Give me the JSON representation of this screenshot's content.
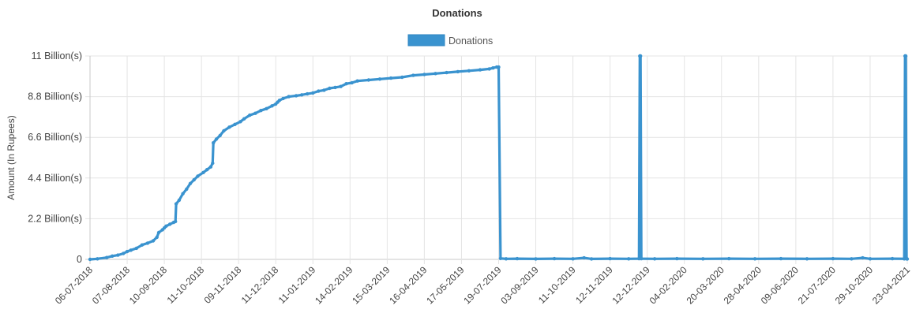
{
  "chart_data": {
    "type": "line",
    "title": "Donations",
    "ylabel": "Amount (In Rupees)",
    "xlabel": "",
    "legend": {
      "position": "top-center",
      "entries": [
        "Donations"
      ]
    },
    "grid": true,
    "color": "#3a93cf",
    "ylim": [
      0,
      11000000000
    ],
    "y_ticks": [
      {
        "value": 0,
        "label": "0"
      },
      {
        "value": 2200000000,
        "label": "2.2 Billion(s)"
      },
      {
        "value": 4400000000,
        "label": "4.4 Billion(s)"
      },
      {
        "value": 6600000000,
        "label": "6.6 Billion(s)"
      },
      {
        "value": 8800000000,
        "label": "8.8 Billion(s)"
      },
      {
        "value": 11000000000,
        "label": "11 Billion(s)"
      }
    ],
    "x_ticks": [
      "06-07-2018",
      "07-08-2018",
      "10-09-2018",
      "11-10-2018",
      "09-11-2018",
      "11-12-2018",
      "11-01-2019",
      "14-02-2019",
      "15-03-2019",
      "16-04-2019",
      "17-05-2019",
      "19-07-2019",
      "03-09-2019",
      "11-10-2019",
      "12-11-2019",
      "12-12-2019",
      "04-02-2020",
      "20-03-2020",
      "28-04-2020",
      "09-06-2020",
      "21-07-2020",
      "29-10-2020",
      "23-04-2021"
    ],
    "series": [
      {
        "name": "Donations",
        "points": [
          [
            0,
            0
          ],
          [
            0.2,
            30000000
          ],
          [
            0.45,
            100000000
          ],
          [
            0.6,
            180000000
          ],
          [
            0.75,
            230000000
          ],
          [
            0.9,
            320000000
          ],
          [
            1.0,
            420000000
          ],
          [
            1.1,
            500000000
          ],
          [
            1.25,
            600000000
          ],
          [
            1.4,
            780000000
          ],
          [
            1.55,
            880000000
          ],
          [
            1.7,
            1000000000
          ],
          [
            1.8,
            1200000000
          ],
          [
            1.85,
            1450000000
          ],
          [
            1.95,
            1600000000
          ],
          [
            2.0,
            1700000000
          ],
          [
            2.05,
            1800000000
          ],
          [
            2.15,
            1900000000
          ],
          [
            2.25,
            2000000000
          ],
          [
            2.3,
            2050000000
          ],
          [
            2.32,
            3000000000
          ],
          [
            2.4,
            3200000000
          ],
          [
            2.5,
            3550000000
          ],
          [
            2.6,
            3800000000
          ],
          [
            2.7,
            4100000000
          ],
          [
            2.8,
            4300000000
          ],
          [
            2.9,
            4500000000
          ],
          [
            3.05,
            4700000000
          ],
          [
            3.15,
            4850000000
          ],
          [
            3.25,
            5000000000
          ],
          [
            3.3,
            5200000000
          ],
          [
            3.32,
            6300000000
          ],
          [
            3.4,
            6500000000
          ],
          [
            3.5,
            6700000000
          ],
          [
            3.6,
            6950000000
          ],
          [
            3.75,
            7150000000
          ],
          [
            3.9,
            7300000000
          ],
          [
            4.05,
            7450000000
          ],
          [
            4.15,
            7600000000
          ],
          [
            4.3,
            7800000000
          ],
          [
            4.45,
            7900000000
          ],
          [
            4.6,
            8050000000
          ],
          [
            4.75,
            8150000000
          ],
          [
            4.9,
            8300000000
          ],
          [
            5.0,
            8400000000
          ],
          [
            5.05,
            8500000000
          ],
          [
            5.1,
            8600000000
          ],
          [
            5.2,
            8700000000
          ],
          [
            5.35,
            8800000000
          ],
          [
            5.55,
            8850000000
          ],
          [
            5.7,
            8900000000
          ],
          [
            5.85,
            8950000000
          ],
          [
            6.0,
            9000000000
          ],
          [
            6.15,
            9100000000
          ],
          [
            6.3,
            9150000000
          ],
          [
            6.45,
            9250000000
          ],
          [
            6.6,
            9300000000
          ],
          [
            6.75,
            9350000000
          ],
          [
            6.9,
            9500000000
          ],
          [
            7.05,
            9550000000
          ],
          [
            7.2,
            9650000000
          ],
          [
            7.5,
            9700000000
          ],
          [
            7.8,
            9750000000
          ],
          [
            8.1,
            9800000000
          ],
          [
            8.4,
            9850000000
          ],
          [
            8.7,
            9950000000
          ],
          [
            9.0,
            10000000000
          ],
          [
            9.3,
            10050000000
          ],
          [
            9.6,
            10100000000
          ],
          [
            9.9,
            10150000000
          ],
          [
            10.2,
            10200000000
          ],
          [
            10.5,
            10250000000
          ],
          [
            10.75,
            10300000000
          ],
          [
            10.85,
            10350000000
          ],
          [
            10.95,
            10400000000
          ],
          [
            11.0,
            10400000000
          ],
          [
            11.05,
            50000000
          ],
          [
            11.2,
            30000000
          ],
          [
            11.5,
            40000000
          ],
          [
            12.0,
            25000000
          ],
          [
            12.5,
            40000000
          ],
          [
            13.0,
            30000000
          ],
          [
            13.3,
            80000000
          ],
          [
            13.5,
            25000000
          ],
          [
            14.0,
            40000000
          ],
          [
            14.5,
            30000000
          ],
          [
            14.78,
            40000000
          ],
          [
            14.8,
            11000000000
          ],
          [
            14.82,
            11000000000
          ],
          [
            14.84,
            40000000
          ],
          [
            15.2,
            30000000
          ],
          [
            15.8,
            40000000
          ],
          [
            16.5,
            30000000
          ],
          [
            17.2,
            40000000
          ],
          [
            17.9,
            30000000
          ],
          [
            18.6,
            40000000
          ],
          [
            19.3,
            30000000
          ],
          [
            20.0,
            40000000
          ],
          [
            20.5,
            30000000
          ],
          [
            20.8,
            80000000
          ],
          [
            21.0,
            30000000
          ],
          [
            21.6,
            40000000
          ],
          [
            21.92,
            30000000
          ],
          [
            21.94,
            11000000000
          ],
          [
            21.96,
            11000000000
          ],
          [
            21.98,
            30000000
          ],
          [
            22.0,
            20000000
          ]
        ]
      }
    ]
  }
}
